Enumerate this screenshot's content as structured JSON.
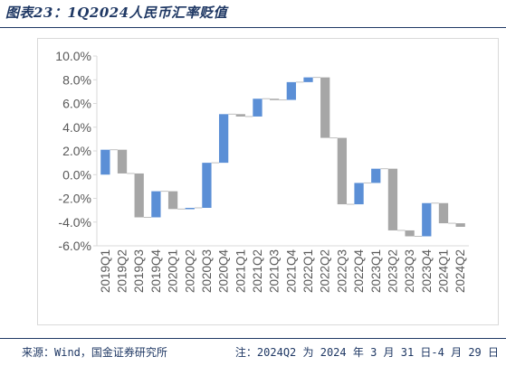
{
  "figure": {
    "title": "图表23：1Q2024人民币汇率贬值",
    "source": "来源：Wind，国金证券研究所",
    "note": "注：2024Q2 为 2024 年 3 月 31 日-4 月 29 日"
  },
  "chart_data": {
    "type": "waterfall",
    "title": "",
    "xlabel": "",
    "ylabel": "",
    "ylim": [
      -6.0,
      10.0
    ],
    "y_ticks": [
      -6.0,
      -4.0,
      -2.0,
      0.0,
      2.0,
      4.0,
      6.0,
      8.0,
      10.0
    ],
    "y_tick_labels": [
      "-6.0%",
      "-4.0%",
      "-2.0%",
      "0.0%",
      "2.0%",
      "4.0%",
      "6.0%",
      "8.0%",
      "10.0%"
    ],
    "grid": false,
    "legend": "none",
    "colors": {
      "increase": "#5b8fd6",
      "decrease": "#a6a6a6",
      "connector": "#bfbfbf",
      "axis": "#d9d9d9",
      "text": "#595959"
    },
    "categories": [
      "2019Q1",
      "2019Q2",
      "2019Q3",
      "2019Q4",
      "2020Q1",
      "2020Q2",
      "2020Q3",
      "2020Q4",
      "2021Q1",
      "2021Q2",
      "2021Q3",
      "2021Q4",
      "2022Q1",
      "2022Q2",
      "2022Q3",
      "2022Q4",
      "2023Q1",
      "2023Q2",
      "2023Q3",
      "2023Q4",
      "2024Q1",
      "2024Q2"
    ],
    "bars": [
      {
        "start": 0.0,
        "end": 2.1
      },
      {
        "start": 2.1,
        "end": 0.1
      },
      {
        "start": 0.1,
        "end": -3.6
      },
      {
        "start": -3.6,
        "end": -1.4
      },
      {
        "start": -1.4,
        "end": -2.9
      },
      {
        "start": -2.9,
        "end": -2.8
      },
      {
        "start": -2.8,
        "end": 1.0
      },
      {
        "start": 1.0,
        "end": 5.1
      },
      {
        "start": 5.1,
        "end": 4.9
      },
      {
        "start": 4.9,
        "end": 6.4
      },
      {
        "start": 6.4,
        "end": 6.3
      },
      {
        "start": 6.3,
        "end": 7.8
      },
      {
        "start": 7.8,
        "end": 8.2
      },
      {
        "start": 8.2,
        "end": 3.1
      },
      {
        "start": 3.1,
        "end": -2.5
      },
      {
        "start": -2.5,
        "end": -0.7
      },
      {
        "start": -0.7,
        "end": 0.5
      },
      {
        "start": 0.5,
        "end": -4.7
      },
      {
        "start": -4.7,
        "end": -5.2
      },
      {
        "start": -5.2,
        "end": -2.4
      },
      {
        "start": -2.4,
        "end": -4.1
      },
      {
        "start": -4.1,
        "end": -4.4
      }
    ]
  }
}
